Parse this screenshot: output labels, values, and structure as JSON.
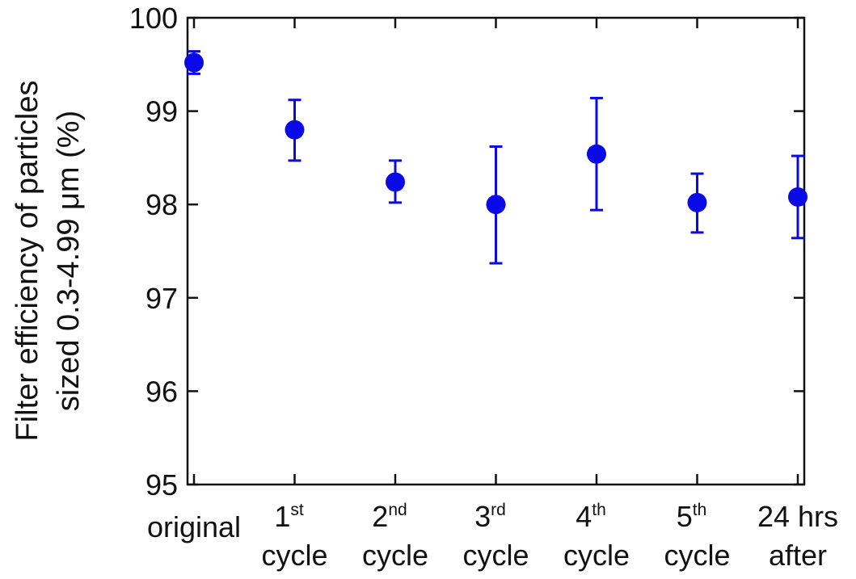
{
  "chart_data": {
    "type": "scatter",
    "title": "",
    "xlabel": "",
    "ylabel": [
      "Filter efficiency of particles",
      "sized 0.3-4.99 μm (%)"
    ],
    "ylim": [
      95,
      100
    ],
    "yticks": [
      "95",
      "96",
      "97",
      "98",
      "99",
      "100"
    ],
    "grid": false,
    "legend": "none",
    "marker_color": "#0a0ae6",
    "categories": [
      {
        "line1": "original",
        "sup": "",
        "line2": ""
      },
      {
        "line1": "1",
        "sup": "st",
        "line2": "cycle"
      },
      {
        "line1": "2",
        "sup": "nd",
        "line2": "cycle"
      },
      {
        "line1": "3",
        "sup": "rd",
        "line2": "cycle"
      },
      {
        "line1": "4",
        "sup": "th",
        "line2": "cycle"
      },
      {
        "line1": "5",
        "sup": "th",
        "line2": "cycle"
      },
      {
        "line1": "24 hrs",
        "sup": "",
        "line2": "after"
      }
    ],
    "series": [
      {
        "values": [
          99.52,
          98.8,
          98.24,
          98.0,
          98.54,
          98.02,
          98.08
        ],
        "error_low": [
          99.4,
          98.47,
          98.02,
          97.37,
          97.94,
          97.7,
          97.64
        ],
        "error_high": [
          99.64,
          99.12,
          98.47,
          98.62,
          99.14,
          98.33,
          98.52
        ]
      }
    ]
  }
}
